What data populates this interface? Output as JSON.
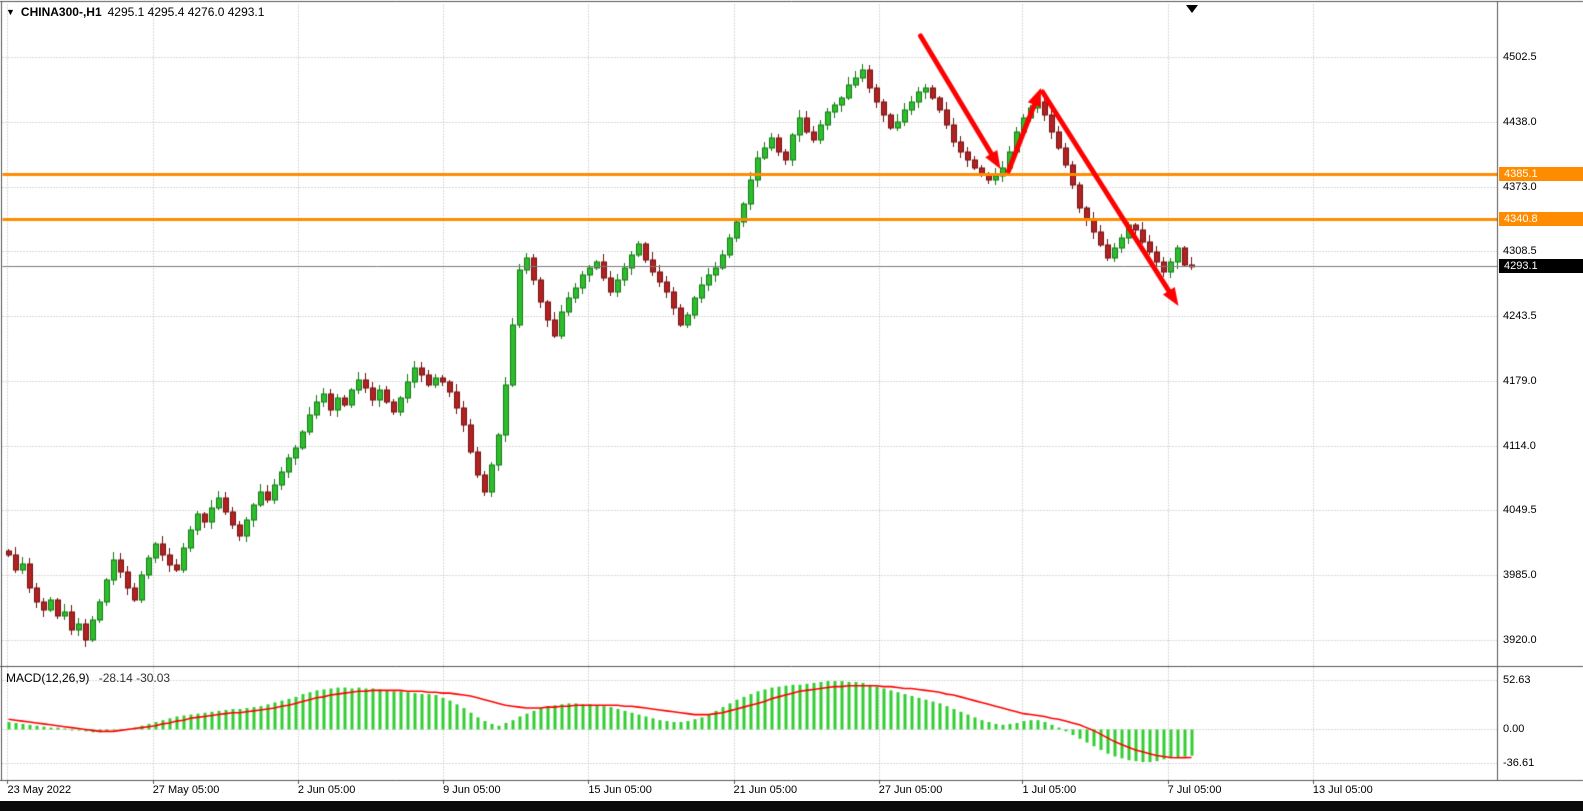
{
  "window": {
    "dropdown_icon": "▼",
    "symbol": "CHINA300-,H1",
    "quote": "4295.1 4295.4 4276.0 4293.1"
  },
  "chart_data": {
    "type": "candlestick",
    "title": "CHINA300-,H1",
    "symbol": "CHINA300-",
    "timeframe": "H1",
    "current_bar_ohlc": {
      "open": 4295.1,
      "high": 4295.4,
      "low": 4276.0,
      "close": 4293.1
    },
    "price_axis": {
      "tick_labels": [
        "4502.5",
        "4438.0",
        "4373.0",
        "4308.5",
        "4243.5",
        "4179.0",
        "4114.0",
        "4049.5",
        "3985.0",
        "3920.0"
      ],
      "tick_values": [
        4502.5,
        4438.0,
        4373.0,
        4308.5,
        4243.5,
        4179.0,
        4114.0,
        4049.5,
        3985.0,
        3920.0
      ],
      "ylim": [
        3894.5,
        4555.5
      ]
    },
    "time_axis": {
      "labels": [
        "23 May 2022",
        "27 May 05:00",
        "2 Jun 05:00",
        "9 Jun 05:00",
        "15 Jun 05:00",
        "21 Jun 05:00",
        "27 Jun 05:00",
        "1 Jul 05:00",
        "7 Jul 05:00",
        "13 Jul 05:00"
      ],
      "positions": [
        0.005,
        0.102,
        0.199,
        0.296,
        0.393,
        0.49,
        0.587,
        0.683,
        0.78,
        0.877
      ]
    },
    "hlines": [
      {
        "price": 4385.1,
        "label": "4385.1",
        "color": "#FF8C00"
      },
      {
        "price": 4340.8,
        "label": "4340.8",
        "color": "#FF8C00"
      }
    ],
    "current_price": {
      "value": 4293.1,
      "label": "4293.1",
      "line_color": "#7b7b7b",
      "badge_bg": "#000000"
    },
    "colors": {
      "up": "#2DBE2D",
      "up_border": "#147814",
      "down": "#B22222",
      "down_border": "#701111",
      "grid": "#b3b3b3",
      "border": "#555555",
      "macd_hist": "#32CD32",
      "macd_signal": "#FF0000",
      "hline": "#FF8C00",
      "arrow": "#FF0000"
    },
    "candles": {
      "closes": [
        4005,
        3990,
        3996,
        3972,
        3958,
        3950,
        3960,
        3944,
        3948,
        3930,
        3936,
        3920,
        3940,
        3958,
        3980,
        4000,
        3988,
        3972,
        3960,
        3985,
        4002,
        4016,
        4005,
        3995,
        3990,
        4012,
        4030,
        4046,
        4038,
        4052,
        4062,
        4048,
        4035,
        4024,
        4040,
        4055,
        4068,
        4060,
        4075,
        4088,
        4102,
        4112,
        4128,
        4145,
        4158,
        4166,
        4150,
        4162,
        4155,
        4170,
        4180,
        4172,
        4160,
        4170,
        4158,
        4148,
        4162,
        4178,
        4192,
        4185,
        4175,
        4182,
        4178,
        4168,
        4152,
        4135,
        4108,
        4085,
        4068,
        4095,
        4125,
        4175,
        4235,
        4290,
        4302,
        4280,
        4258,
        4240,
        4224,
        4248,
        4262,
        4272,
        4285,
        4292,
        4298,
        4282,
        4268,
        4280,
        4292,
        4305,
        4316,
        4300,
        4288,
        4278,
        4268,
        4252,
        4235,
        4245,
        4262,
        4275,
        4285,
        4292,
        4305,
        4322,
        4338,
        4356,
        4380,
        4402,
        4412,
        4422,
        4408,
        4400,
        4425,
        4442,
        4428,
        4420,
        4435,
        4448,
        4455,
        4462,
        4475,
        4482,
        4490,
        4472,
        4458,
        4445,
        4432,
        4438,
        4450,
        4458,
        4468,
        4472,
        4462,
        4450,
        4435,
        4418,
        4408,
        4400,
        4392,
        4386,
        4380,
        4384,
        4392,
        4408,
        4428,
        4442,
        4452,
        4458,
        4445,
        4428,
        4412,
        4395,
        4375,
        4352,
        4340,
        4328,
        4315,
        4302,
        4312,
        4322,
        4335,
        4330,
        4318,
        4308,
        4298,
        4288,
        4298,
        4312,
        4295,
        4293.1
      ]
    },
    "macd": {
      "name": "MACD(12,26,9)",
      "current_values": "-28.14 -30.03",
      "scale_tick_labels": [
        "52.63",
        "0.00",
        "-36.61"
      ],
      "scale_tick_values": [
        52.63,
        0,
        -36.61
      ],
      "ylim": [
        -53.7,
        64.4
      ],
      "histogram": [
        8,
        7,
        6,
        5,
        4,
        3,
        2,
        2,
        1,
        0,
        -1,
        -2,
        -3,
        -3,
        -2,
        -1,
        0,
        1,
        2,
        4,
        6,
        8,
        10,
        12,
        14,
        15,
        16,
        17,
        18,
        19,
        20,
        21,
        22,
        22,
        23,
        24,
        25,
        27,
        29,
        31,
        33,
        35,
        38,
        40,
        42,
        43,
        44,
        45,
        45,
        44,
        45,
        44,
        44,
        43,
        42,
        41,
        41,
        40,
        39,
        38,
        38,
        37,
        34,
        31,
        27,
        23,
        18,
        13,
        9,
        6,
        4,
        7,
        10,
        14,
        17,
        20,
        23,
        25,
        26,
        27,
        28,
        28,
        27,
        27,
        26,
        25,
        24,
        22,
        20,
        18,
        16,
        14,
        12,
        10,
        9,
        8,
        8,
        9,
        11,
        13,
        16,
        20,
        24,
        28,
        32,
        35,
        38,
        41,
        43,
        45,
        46,
        47,
        48,
        48,
        49,
        50,
        51,
        52,
        52,
        52,
        51,
        51,
        50,
        48,
        46,
        44,
        42,
        40,
        38,
        36,
        34,
        32,
        30,
        28,
        25,
        22,
        19,
        16,
        13,
        10,
        8,
        6,
        5,
        6,
        7,
        9,
        10,
        10,
        8,
        5,
        2,
        -2,
        -6,
        -10,
        -14,
        -18,
        -22,
        -26,
        -29,
        -31,
        -33,
        -34,
        -35,
        -35,
        -34,
        -32,
        -31,
        -30,
        -29,
        -28.14
      ],
      "signal": [
        11,
        10,
        9,
        8,
        7,
        6,
        5,
        4,
        3,
        2,
        1,
        0,
        -1,
        -2,
        -2,
        -2,
        -1,
        0,
        1,
        2,
        3,
        4,
        6,
        7,
        9,
        10,
        12,
        13,
        14,
        15,
        16,
        17,
        18,
        18,
        19,
        20,
        21,
        22,
        23,
        25,
        26,
        28,
        30,
        32,
        34,
        35,
        37,
        38,
        39,
        40,
        41,
        41,
        42,
        42,
        42,
        42,
        42,
        41,
        41,
        41,
        40,
        40,
        39,
        39,
        38,
        37,
        36,
        34,
        32,
        30,
        28,
        26,
        25,
        24,
        23,
        23,
        23,
        24,
        24,
        25,
        25,
        26,
        26,
        26,
        26,
        26,
        26,
        26,
        25,
        25,
        24,
        23,
        22,
        21,
        20,
        19,
        18,
        17,
        16,
        16,
        16,
        17,
        18,
        20,
        22,
        24,
        26,
        28,
        30,
        33,
        35,
        37,
        39,
        41,
        42,
        43,
        44,
        45,
        46,
        46,
        47,
        47,
        47,
        47,
        47,
        46,
        46,
        45,
        44,
        44,
        43,
        42,
        41,
        40,
        38,
        37,
        35,
        33,
        31,
        29,
        27,
        25,
        23,
        21,
        19,
        17,
        16,
        15,
        14,
        12,
        11,
        9,
        7,
        5,
        2,
        -1,
        -5,
        -9,
        -13,
        -16,
        -19,
        -22,
        -24,
        -26,
        -28,
        -29,
        -30,
        -30.3,
        -30.2,
        -30.03
      ]
    },
    "arrows": [
      {
        "from": {
          "x": 0.6146,
          "price": 4524
        },
        "to": {
          "x": 0.668,
          "price": 4391
        }
      },
      {
        "from": {
          "x": 0.6733,
          "price": 4389
        },
        "to": {
          "x": 0.695,
          "price": 4472
        }
      },
      {
        "from": {
          "x": 0.6961,
          "price": 4468
        },
        "to": {
          "x": 0.7869,
          "price": 4254
        }
      }
    ]
  }
}
